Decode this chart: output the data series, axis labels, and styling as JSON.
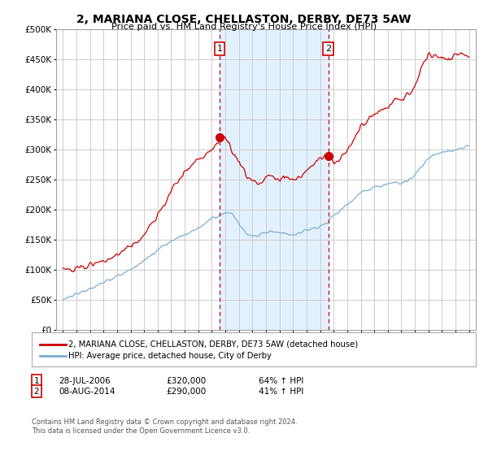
{
  "title": "2, MARIANA CLOSE, CHELLASTON, DERBY, DE73 5AW",
  "subtitle": "Price paid vs. HM Land Registry's House Price Index (HPI)",
  "background_color": "#ffffff",
  "grid_color": "#cccccc",
  "vline1_x": 2006.57,
  "vline2_x": 2014.6,
  "marker1_price": 320000,
  "marker2_price": 290000,
  "legend_line1": "2, MARIANA CLOSE, CHELLASTON, DERBY, DE73 5AW (detached house)",
  "legend_line2": "HPI: Average price, detached house, City of Derby",
  "line1_color": "#cc0000",
  "line2_color": "#7bafd4",
  "span_color": "#ddeeff",
  "footer": "Contains HM Land Registry data © Crown copyright and database right 2024.\nThis data is licensed under the Open Government Licence v3.0.",
  "ylim": [
    0,
    500000
  ],
  "yticks": [
    0,
    50000,
    100000,
    150000,
    200000,
    250000,
    300000,
    350000,
    400000,
    450000,
    500000
  ],
  "xlim": [
    1994.5,
    2025.5
  ],
  "xticks": [
    1995,
    1996,
    1997,
    1998,
    1999,
    2000,
    2001,
    2002,
    2003,
    2004,
    2005,
    2006,
    2007,
    2008,
    2009,
    2010,
    2011,
    2012,
    2013,
    2014,
    2015,
    2016,
    2017,
    2018,
    2019,
    2020,
    2021,
    2022,
    2023,
    2024,
    2025
  ]
}
